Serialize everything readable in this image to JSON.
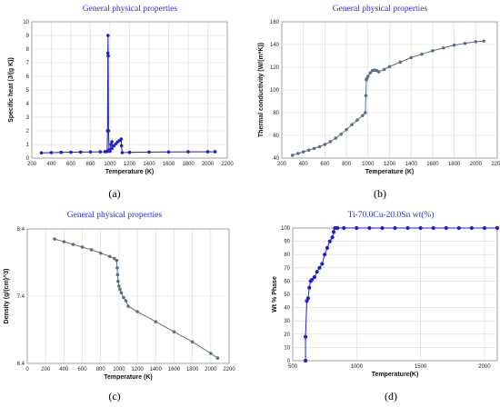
{
  "chart_data": [
    {
      "id": "a",
      "type": "line",
      "panel_label": "(a)",
      "title": "General physical properties",
      "xlabel": "Temperature (K)",
      "ylabel": "Specific heat (J/(g K))",
      "xlim": [
        200,
        2200
      ],
      "ylim": [
        0,
        10
      ],
      "xticks": [
        200,
        400,
        600,
        800,
        1000,
        1200,
        1400,
        1600,
        1800,
        2000,
        2200
      ],
      "yticks": [
        0,
        1,
        2,
        3,
        4,
        5,
        6,
        7,
        8,
        9,
        10
      ],
      "grid": true,
      "color": "#1f1fd0",
      "marker_size": 1.8,
      "series": [
        {
          "x": [
            298,
            400,
            500,
            600,
            700,
            800,
            900,
            950,
            970,
            975,
            978,
            980,
            982,
            985,
            990,
            1000,
            1010,
            1020,
            1020,
            1040,
            1060,
            1080,
            1100,
            1115,
            1118,
            1125,
            1200,
            1400,
            1600,
            1800,
            2000,
            2075
          ],
          "y": [
            0.38,
            0.4,
            0.42,
            0.43,
            0.44,
            0.45,
            0.46,
            0.47,
            0.48,
            2.0,
            7.7,
            9.0,
            7.5,
            2.0,
            0.6,
            0.5,
            1.0,
            1.2,
            0.7,
            0.9,
            1.05,
            1.2,
            1.3,
            1.4,
            0.9,
            0.4,
            0.42,
            0.44,
            0.45,
            0.46,
            0.46,
            0.47
          ]
        }
      ]
    },
    {
      "id": "b",
      "type": "line",
      "panel_label": "(b)",
      "title": "General physical properties",
      "xlabel": "Temperature (K)",
      "ylabel": "Thermal conductivity (W/(m*K))",
      "xlim": [
        200,
        2200
      ],
      "ylim": [
        40,
        160
      ],
      "xticks": [
        200,
        400,
        600,
        800,
        1000,
        1200,
        1400,
        1600,
        1800,
        2000,
        2200
      ],
      "yticks": [
        40,
        60,
        80,
        100,
        120,
        140,
        160
      ],
      "grid": true,
      "color": "#5e6f84",
      "marker_size": 1.8,
      "series": [
        {
          "x": [
            298,
            350,
            400,
            450,
            500,
            550,
            600,
            650,
            700,
            750,
            800,
            850,
            900,
            950,
            975,
            980,
            985,
            990,
            1000,
            1020,
            1040,
            1060,
            1080,
            1100,
            1150,
            1200,
            1300,
            1400,
            1500,
            1600,
            1700,
            1800,
            1900,
            2000,
            2075
          ],
          "y": [
            42.5,
            44,
            45.5,
            47,
            48.5,
            50,
            52,
            54.5,
            57.5,
            61,
            65,
            69.5,
            73.5,
            77.5,
            80,
            95,
            109,
            110,
            112,
            115,
            117,
            117.5,
            117,
            116,
            118,
            120.5,
            124.5,
            128.5,
            131.5,
            134.5,
            137,
            139.5,
            141,
            142.5,
            143
          ]
        }
      ]
    },
    {
      "id": "c",
      "type": "line",
      "panel_label": "(c)",
      "title": "General physical properties",
      "xlabel": "Temperature (K)",
      "ylabel": "Density (g/(cm)^3)",
      "xlim": [
        0,
        2200
      ],
      "ylim": [
        6.4,
        8.4
      ],
      "xticks": [
        200,
        400,
        600,
        800,
        1000,
        1200,
        1400,
        1600,
        1800,
        2000,
        2200
      ],
      "xticks_labelled": [
        0,
        200,
        400,
        600,
        800,
        1000,
        1200,
        1400,
        1600,
        1800,
        2000,
        2200
      ],
      "yticks": [
        6.4,
        7.4,
        8.4
      ],
      "grid": true,
      "color": "#5e6f84",
      "marker_size": 1.8,
      "series": [
        {
          "x": [
            298,
            400,
            500,
            600,
            700,
            800,
            900,
            950,
            975,
            980,
            985,
            990,
            1000,
            1010,
            1025,
            1050,
            1075,
            1100,
            1200,
            1400,
            1600,
            1800,
            2000,
            2075
          ],
          "y": [
            8.25,
            8.21,
            8.17,
            8.13,
            8.09,
            8.04,
            7.99,
            7.96,
            7.93,
            7.82,
            7.72,
            7.62,
            7.55,
            7.5,
            7.45,
            7.38,
            7.33,
            7.25,
            7.17,
            7.02,
            6.87,
            6.72,
            6.55,
            6.48
          ]
        }
      ]
    },
    {
      "id": "d",
      "type": "line",
      "panel_label": "(d)",
      "title": "Ti-70.0Cu-20.0Sn wt(%)",
      "xlabel": "Temperature(K)",
      "ylabel": "Wt % Phase",
      "xlim": [
        500,
        2100
      ],
      "ylim": [
        0,
        100
      ],
      "xticks": [
        500,
        1000,
        1500,
        2000
      ],
      "yticks": [
        0,
        10,
        20,
        30,
        40,
        50,
        60,
        70,
        80,
        90,
        100
      ],
      "grid": true,
      "color": "#1f1fd0",
      "marker_size": 2.1,
      "series": [
        {
          "x": [
            600,
            600,
            610,
            620,
            630,
            640,
            650,
            670,
            690,
            710,
            730,
            750,
            770,
            790,
            810,
            820,
            830,
            850,
            900,
            1000,
            1100,
            1200,
            1300,
            1400,
            1500,
            1600,
            1700,
            1800,
            1900,
            2000,
            2100
          ],
          "y": [
            0,
            18,
            45,
            47,
            55,
            60,
            61,
            63,
            67,
            70,
            73,
            80,
            85,
            90,
            93,
            97,
            100,
            100,
            100,
            100,
            100,
            100,
            100,
            100,
            100,
            100,
            100,
            100,
            100,
            100,
            100
          ]
        }
      ]
    }
  ]
}
